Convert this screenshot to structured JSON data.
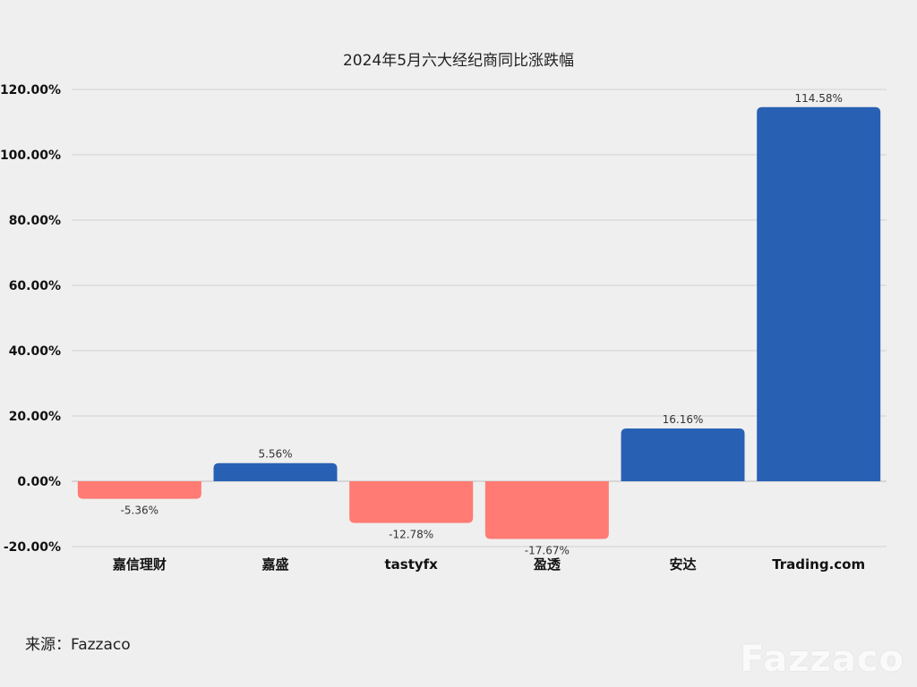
{
  "chart_data": {
    "type": "bar",
    "title": "2024年5月六大经纪商同比涨跌幅",
    "xlabel": "",
    "ylabel": "",
    "categories": [
      "嘉信理财",
      "嘉盛",
      "tastyfx",
      "盈透",
      "安达",
      "Trading.com"
    ],
    "values": [
      -5.36,
      5.56,
      -12.78,
      -17.67,
      16.16,
      114.58
    ],
    "data_labels": [
      "-5.36%",
      "5.56%",
      "-12.78%",
      "-17.67%",
      "16.16%",
      "114.58%"
    ],
    "y_ticks": [
      -20,
      0,
      20,
      40,
      60,
      80,
      100,
      120
    ],
    "y_tick_labels": [
      "-20.00%",
      "0.00%",
      "20.00%",
      "40.00%",
      "60.00%",
      "80.00%",
      "100.00%",
      "120.00%"
    ],
    "ylim": [
      -20,
      120
    ],
    "grid": true,
    "colors": {
      "positive": "#2861b4",
      "negative": "#ff7b73",
      "grid": "#d0d0d0",
      "background": "#efefef"
    }
  },
  "source": "来源：Fazzaco",
  "watermark": "Fazzaco"
}
